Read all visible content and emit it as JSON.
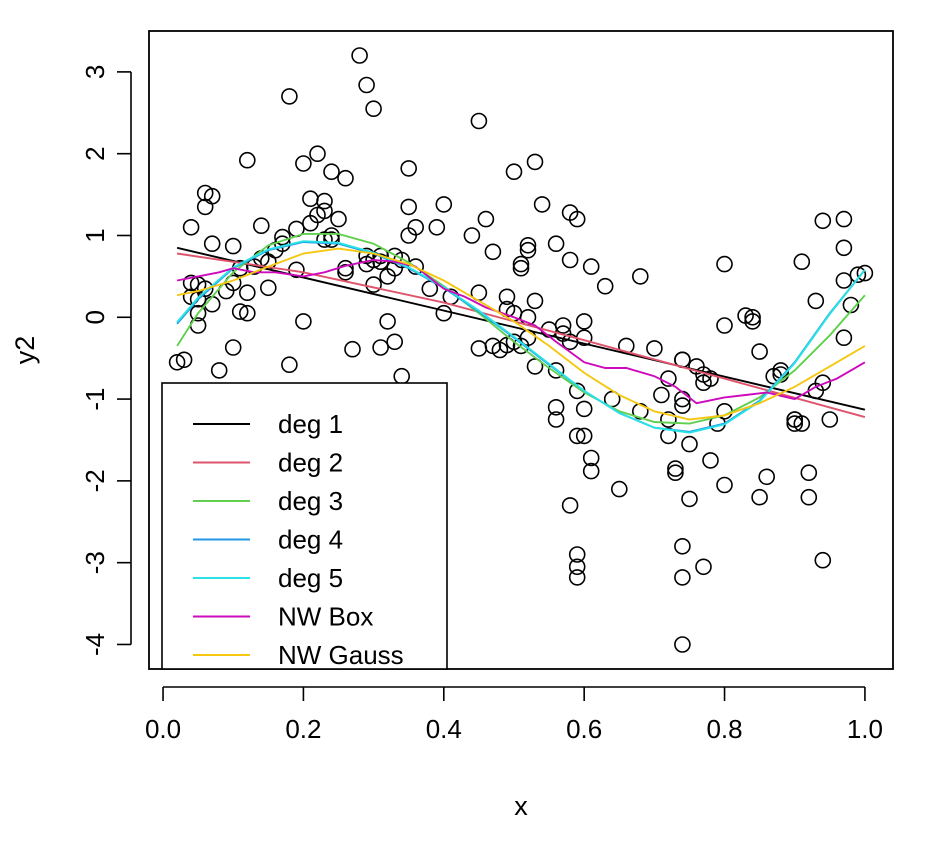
{
  "chart_data": {
    "type": "scatter",
    "title": "",
    "xlabel": "x",
    "ylabel": "y2",
    "xlim": [
      -0.02,
      1.04
    ],
    "ylim": [
      -4.3,
      3.5
    ],
    "x_ticks": [
      0.0,
      0.2,
      0.4,
      0.6,
      0.8,
      1.0
    ],
    "x_tick_labels": [
      "0.0",
      "0.2",
      "0.4",
      "0.6",
      "0.8",
      "1.0"
    ],
    "y_ticks": [
      -4,
      -3,
      -2,
      -1,
      0,
      1,
      2,
      3
    ],
    "y_tick_labels": [
      "-4",
      "-3",
      "-2",
      "-1",
      "0",
      "1",
      "2",
      "3"
    ],
    "grid": false,
    "legend_position": "bottom-left",
    "points": [
      [
        0.02,
        -0.55
      ],
      [
        0.03,
        -0.52
      ],
      [
        0.04,
        1.1
      ],
      [
        0.04,
        0.42
      ],
      [
        0.04,
        0.25
      ],
      [
        0.05,
        0.05
      ],
      [
        0.05,
        0.4
      ],
      [
        0.05,
        0.22
      ],
      [
        0.05,
        -0.1
      ],
      [
        0.06,
        1.52
      ],
      [
        0.06,
        1.35
      ],
      [
        0.06,
        0.35
      ],
      [
        0.07,
        0.9
      ],
      [
        0.07,
        1.48
      ],
      [
        0.07,
        0.16
      ],
      [
        0.08,
        -0.65
      ],
      [
        0.09,
        0.32
      ],
      [
        0.1,
        0.87
      ],
      [
        0.1,
        0.42
      ],
      [
        0.1,
        -0.37
      ],
      [
        0.11,
        0.6
      ],
      [
        0.11,
        0.07
      ],
      [
        0.12,
        0.3
      ],
      [
        0.12,
        0.05
      ],
      [
        0.12,
        1.92
      ],
      [
        0.13,
        0.62
      ],
      [
        0.14,
        0.72
      ],
      [
        0.14,
        1.12
      ],
      [
        0.15,
        0.36
      ],
      [
        0.15,
        0.68
      ],
      [
        0.16,
        0.82
      ],
      [
        0.17,
        0.98
      ],
      [
        0.17,
        0.9
      ],
      [
        0.18,
        2.7
      ],
      [
        0.18,
        -0.58
      ],
      [
        0.19,
        1.08
      ],
      [
        0.19,
        0.58
      ],
      [
        0.2,
        1.88
      ],
      [
        0.2,
        -0.05
      ],
      [
        0.21,
        1.45
      ],
      [
        0.21,
        1.15
      ],
      [
        0.22,
        1.25
      ],
      [
        0.22,
        2.0
      ],
      [
        0.23,
        1.42
      ],
      [
        0.23,
        1.3
      ],
      [
        0.24,
        0.95
      ],
      [
        0.24,
        1.78
      ],
      [
        0.24,
        1.0
      ],
      [
        0.25,
        1.2
      ],
      [
        0.26,
        1.7
      ],
      [
        0.26,
        0.6
      ],
      [
        0.26,
        0.55
      ],
      [
        0.27,
        -0.39
      ],
      [
        0.28,
        3.2
      ],
      [
        0.29,
        2.84
      ],
      [
        0.29,
        0.75
      ],
      [
        0.29,
        0.65
      ],
      [
        0.3,
        2.55
      ],
      [
        0.3,
        0.4
      ],
      [
        0.31,
        0.68
      ],
      [
        0.31,
        0.75
      ],
      [
        0.31,
        -0.37
      ],
      [
        0.32,
        0.5
      ],
      [
        0.32,
        -0.05
      ],
      [
        0.33,
        0.75
      ],
      [
        0.33,
        0.6
      ],
      [
        0.33,
        -0.3
      ],
      [
        0.34,
        0.7
      ],
      [
        0.34,
        -0.72
      ],
      [
        0.35,
        1.35
      ],
      [
        0.35,
        1.82
      ],
      [
        0.35,
        1.0
      ],
      [
        0.36,
        1.1
      ],
      [
        0.36,
        0.62
      ],
      [
        0.38,
        0.35
      ],
      [
        0.39,
        1.1
      ],
      [
        0.4,
        1.38
      ],
      [
        0.4,
        0.05
      ],
      [
        0.41,
        0.25
      ],
      [
        0.44,
        1.0
      ],
      [
        0.45,
        2.4
      ],
      [
        0.45,
        0.3
      ],
      [
        0.45,
        -0.38
      ],
      [
        0.46,
        1.2
      ],
      [
        0.47,
        0.8
      ],
      [
        0.47,
        -0.35
      ],
      [
        0.48,
        -0.4
      ],
      [
        0.49,
        0.25
      ],
      [
        0.49,
        0.1
      ],
      [
        0.49,
        -0.34
      ],
      [
        0.5,
        1.78
      ],
      [
        0.5,
        -0.3
      ],
      [
        0.51,
        0.65
      ],
      [
        0.51,
        0.6
      ],
      [
        0.51,
        -0.35
      ],
      [
        0.52,
        0.88
      ],
      [
        0.52,
        0.82
      ],
      [
        0.52,
        0.0
      ],
      [
        0.53,
        0.2
      ],
      [
        0.53,
        -0.6
      ],
      [
        0.53,
        1.9
      ],
      [
        0.54,
        1.38
      ],
      [
        0.55,
        -0.15
      ],
      [
        0.56,
        0.9
      ],
      [
        0.56,
        -0.65
      ],
      [
        0.56,
        -1.1
      ],
      [
        0.56,
        -1.25
      ],
      [
        0.57,
        -0.1
      ],
      [
        0.57,
        -0.2
      ],
      [
        0.58,
        1.28
      ],
      [
        0.58,
        0.7
      ],
      [
        0.58,
        -0.3
      ],
      [
        0.59,
        1.2
      ],
      [
        0.59,
        -0.9
      ],
      [
        0.59,
        -1.45
      ],
      [
        0.59,
        -3.05
      ],
      [
        0.59,
        -3.18
      ],
      [
        0.6,
        -0.05
      ],
      [
        0.6,
        -0.25
      ],
      [
        0.6,
        -1.12
      ],
      [
        0.6,
        -1.45
      ],
      [
        0.61,
        -1.72
      ],
      [
        0.61,
        -1.88
      ],
      [
        0.61,
        0.62
      ],
      [
        0.63,
        0.38
      ],
      [
        0.64,
        -1.0
      ],
      [
        0.65,
        -2.1
      ],
      [
        0.66,
        -0.35
      ],
      [
        0.68,
        0.5
      ],
      [
        0.68,
        -1.15
      ],
      [
        0.7,
        -0.38
      ],
      [
        0.71,
        -0.95
      ],
      [
        0.72,
        -0.75
      ],
      [
        0.72,
        -1.45
      ],
      [
        0.72,
        -1.25
      ],
      [
        0.73,
        -1.85
      ],
      [
        0.73,
        -1.9
      ],
      [
        0.74,
        -0.52
      ],
      [
        0.74,
        -1.0
      ],
      [
        0.74,
        -1.08
      ],
      [
        0.74,
        -2.8
      ],
      [
        0.74,
        -3.18
      ],
      [
        0.74,
        -4.0
      ],
      [
        0.75,
        -2.22
      ],
      [
        0.75,
        -1.55
      ],
      [
        0.76,
        -0.6
      ],
      [
        0.77,
        -0.7
      ],
      [
        0.77,
        -0.8
      ],
      [
        0.77,
        -3.05
      ],
      [
        0.78,
        -0.75
      ],
      [
        0.78,
        -1.75
      ],
      [
        0.79,
        -1.3
      ],
      [
        0.8,
        0.65
      ],
      [
        0.8,
        -0.1
      ],
      [
        0.8,
        -1.15
      ],
      [
        0.8,
        -2.05
      ],
      [
        0.83,
        0.02
      ],
      [
        0.84,
        0.0
      ],
      [
        0.84,
        -0.05
      ],
      [
        0.85,
        -2.2
      ],
      [
        0.85,
        -0.42
      ],
      [
        0.86,
        -1.95
      ],
      [
        0.87,
        -0.72
      ],
      [
        0.88,
        -0.65
      ],
      [
        0.88,
        -0.7
      ],
      [
        0.9,
        -1.25
      ],
      [
        0.9,
        -1.3
      ],
      [
        0.91,
        0.68
      ],
      [
        0.91,
        -1.3
      ],
      [
        0.92,
        -1.9
      ],
      [
        0.92,
        -2.2
      ],
      [
        0.93,
        0.2
      ],
      [
        0.93,
        -0.9
      ],
      [
        0.94,
        -0.8
      ],
      [
        0.94,
        1.18
      ],
      [
        0.94,
        -2.97
      ],
      [
        0.95,
        -1.25
      ],
      [
        0.97,
        1.2
      ],
      [
        0.97,
        0.85
      ],
      [
        0.97,
        0.45
      ],
      [
        0.97,
        -0.25
      ],
      [
        0.98,
        0.15
      ],
      [
        0.99,
        0.52
      ],
      [
        1.0,
        0.54
      ],
      [
        0.9,
        -1.25
      ],
      [
        0.3,
        0.7
      ],
      [
        0.58,
        -2.3
      ],
      [
        0.59,
        -2.9
      ],
      [
        0.5,
        0.05
      ],
      [
        0.52,
        -0.25
      ],
      [
        0.23,
        0.95
      ],
      [
        0.74,
        -0.52
      ]
    ],
    "series": [
      {
        "name": "deg 1",
        "color": "#000000",
        "x": [
          0.02,
          1.0
        ],
        "y": [
          0.85,
          -1.13
        ]
      },
      {
        "name": "deg 2",
        "color": "#df536b",
        "x": [
          0.02,
          0.2,
          0.4,
          0.6,
          0.8,
          1.0
        ],
        "y": [
          0.78,
          0.55,
          0.18,
          -0.28,
          -0.75,
          -1.22
        ]
      },
      {
        "name": "deg 3",
        "color": "#61d04f",
        "x": [
          0.02,
          0.05,
          0.1,
          0.15,
          0.2,
          0.25,
          0.3,
          0.35,
          0.4,
          0.45,
          0.5,
          0.55,
          0.6,
          0.65,
          0.7,
          0.75,
          0.8,
          0.85,
          0.9,
          0.95,
          1.0
        ],
        "y": [
          -0.35,
          0.05,
          0.55,
          0.88,
          1.02,
          1.02,
          0.9,
          0.67,
          0.38,
          0.05,
          -0.3,
          -0.62,
          -0.92,
          -1.15,
          -1.28,
          -1.3,
          -1.2,
          -0.98,
          -0.65,
          -0.22,
          0.27
        ]
      },
      {
        "name": "deg 4",
        "color": "#2297e6",
        "x": [
          0.02,
          0.05,
          0.1,
          0.15,
          0.2,
          0.25,
          0.3,
          0.35,
          0.4,
          0.45,
          0.5,
          0.55,
          0.6,
          0.65,
          0.7,
          0.75,
          0.8,
          0.85,
          0.9,
          0.95,
          1.0
        ],
        "y": [
          -0.08,
          0.22,
          0.6,
          0.82,
          0.92,
          0.9,
          0.78,
          0.6,
          0.36,
          0.07,
          -0.25,
          -0.58,
          -0.9,
          -1.17,
          -1.35,
          -1.4,
          -1.3,
          -1.02,
          -0.55,
          0.05,
          0.58
        ]
      },
      {
        "name": "deg 5",
        "color": "#28e2e5",
        "x": [
          0.02,
          0.05,
          0.1,
          0.15,
          0.2,
          0.25,
          0.3,
          0.35,
          0.4,
          0.45,
          0.5,
          0.55,
          0.6,
          0.65,
          0.7,
          0.75,
          0.8,
          0.85,
          0.9,
          0.95,
          1.0
        ],
        "y": [
          -0.06,
          0.24,
          0.61,
          0.83,
          0.93,
          0.91,
          0.79,
          0.61,
          0.37,
          0.08,
          -0.24,
          -0.57,
          -0.9,
          -1.17,
          -1.35,
          -1.41,
          -1.31,
          -1.03,
          -0.56,
          0.04,
          0.58
        ]
      },
      {
        "name": "NW Box",
        "color": "#cd0bbc",
        "x": [
          0.02,
          0.05,
          0.08,
          0.1,
          0.13,
          0.16,
          0.2,
          0.23,
          0.26,
          0.3,
          0.33,
          0.36,
          0.4,
          0.43,
          0.46,
          0.5,
          0.53,
          0.56,
          0.6,
          0.63,
          0.66,
          0.7,
          0.73,
          0.76,
          0.8,
          0.83,
          0.86,
          0.9,
          0.93,
          0.96,
          1.0
        ],
        "y": [
          0.45,
          0.5,
          0.55,
          0.6,
          0.55,
          0.55,
          0.5,
          0.55,
          0.63,
          0.7,
          0.68,
          0.62,
          0.35,
          0.25,
          0.12,
          0.0,
          -0.1,
          -0.3,
          -0.55,
          -0.62,
          -0.62,
          -0.72,
          -0.85,
          -1.05,
          -0.98,
          -0.95,
          -0.92,
          -1.0,
          -0.85,
          -0.75,
          -0.55
        ]
      },
      {
        "name": "NW Gauss",
        "color": "#f5c710",
        "x": [
          0.02,
          0.05,
          0.1,
          0.15,
          0.2,
          0.25,
          0.3,
          0.35,
          0.4,
          0.45,
          0.5,
          0.55,
          0.6,
          0.65,
          0.7,
          0.75,
          0.8,
          0.85,
          0.9,
          0.95,
          1.0
        ],
        "y": [
          0.27,
          0.32,
          0.45,
          0.62,
          0.78,
          0.84,
          0.78,
          0.65,
          0.45,
          0.2,
          -0.05,
          -0.35,
          -0.68,
          -0.95,
          -1.15,
          -1.25,
          -1.2,
          -1.05,
          -0.85,
          -0.6,
          -0.35
        ]
      }
    ]
  }
}
